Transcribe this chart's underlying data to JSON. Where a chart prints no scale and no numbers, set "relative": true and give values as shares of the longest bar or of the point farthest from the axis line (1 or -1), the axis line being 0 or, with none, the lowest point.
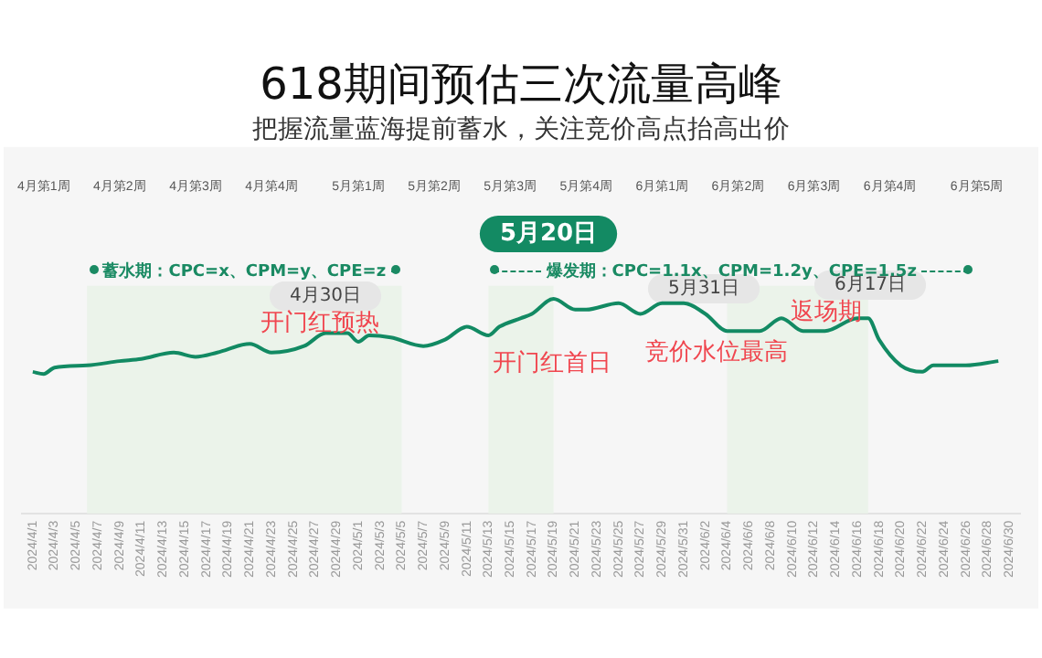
{
  "chart_data": {
    "type": "line",
    "title": "618期间预估三次流量高峰",
    "subtitle": "把握流量蓝海提前蓄水，关注竞价高点抬高出价",
    "relative": true,
    "grid": false,
    "legend": false,
    "marker": "none",
    "line_style": "solid",
    "xlim": [
      "2024-03-31",
      "2024-07-01"
    ],
    "xticks": [
      {
        "value": "2024-04-01",
        "label": "2024/4/1"
      },
      {
        "value": "2024-04-03",
        "label": "2024/4/3"
      },
      {
        "value": "2024-04-05",
        "label": "2024/4/5"
      },
      {
        "value": "2024-04-07",
        "label": "2024/4/7"
      },
      {
        "value": "2024-04-09",
        "label": "2024/4/9"
      },
      {
        "value": "2024-04-11",
        "label": "2024/4/11"
      },
      {
        "value": "2024-04-13",
        "label": "2024/4/13"
      },
      {
        "value": "2024-04-15",
        "label": "2024/4/15"
      },
      {
        "value": "2024-04-17",
        "label": "2024/4/17"
      },
      {
        "value": "2024-04-19",
        "label": "2024/4/19"
      },
      {
        "value": "2024-04-21",
        "label": "2024/4/21"
      },
      {
        "value": "2024-04-23",
        "label": "2024/4/23"
      },
      {
        "value": "2024-04-25",
        "label": "2024/4/25"
      },
      {
        "value": "2024-04-27",
        "label": "2024/4/27"
      },
      {
        "value": "2024-04-29",
        "label": "2024/4/29"
      },
      {
        "value": "2024-05-01",
        "label": "2024/5/1"
      },
      {
        "value": "2024-05-03",
        "label": "2024/5/3"
      },
      {
        "value": "2024-05-05",
        "label": "2024/5/5"
      },
      {
        "value": "2024-05-07",
        "label": "2024/5/7"
      },
      {
        "value": "2024-05-09",
        "label": "2024/5/9"
      },
      {
        "value": "2024-05-11",
        "label": "2024/5/11"
      },
      {
        "value": "2024-05-13",
        "label": "2024/5/13"
      },
      {
        "value": "2024-05-15",
        "label": "2024/5/15"
      },
      {
        "value": "2024-05-17",
        "label": "2024/5/17"
      },
      {
        "value": "2024-05-19",
        "label": "2024/5/19"
      },
      {
        "value": "2024-05-21",
        "label": "2024/5/21"
      },
      {
        "value": "2024-05-23",
        "label": "2024/5/23"
      },
      {
        "value": "2024-05-25",
        "label": "2024/5/25"
      },
      {
        "value": "2024-05-27",
        "label": "2024/5/27"
      },
      {
        "value": "2024-05-29",
        "label": "2024/5/29"
      },
      {
        "value": "2024-05-31",
        "label": "2024/5/31"
      },
      {
        "value": "2024-06-02",
        "label": "2024/6/2"
      },
      {
        "value": "2024-06-04",
        "label": "2024/6/4"
      },
      {
        "value": "2024-06-06",
        "label": "2024/6/6"
      },
      {
        "value": "2024-06-08",
        "label": "2024/6/8"
      },
      {
        "value": "2024-06-10",
        "label": "2024/6/10"
      },
      {
        "value": "2024-06-12",
        "label": "2024/6/12"
      },
      {
        "value": "2024-06-14",
        "label": "2024/6/14"
      },
      {
        "value": "2024-06-16",
        "label": "2024/6/16"
      },
      {
        "value": "2024-06-18",
        "label": "2024/6/18"
      },
      {
        "value": "2024-06-20",
        "label": "2024/6/20"
      },
      {
        "value": "2024-06-22",
        "label": "2024/6/22"
      },
      {
        "value": "2024-06-24",
        "label": "2024/6/24"
      },
      {
        "value": "2024-06-26",
        "label": "2024/6/26"
      },
      {
        "value": "2024-06-28",
        "label": "2024/6/28"
      },
      {
        "value": "2024-06-30",
        "label": "2024/6/30"
      }
    ],
    "x2lim": [
      "2024-03-31",
      "2024-07-01"
    ],
    "x2ticks": [
      {
        "value": "2024-04-02",
        "label": "4月第1周"
      },
      {
        "value": "2024-04-09",
        "label": "4月第2周"
      },
      {
        "value": "2024-04-16",
        "label": "4月第3周"
      },
      {
        "value": "2024-04-23",
        "label": "4月第4周"
      },
      {
        "value": "2024-05-01",
        "label": "5月第1周"
      },
      {
        "value": "2024-05-08",
        "label": "5月第2周"
      },
      {
        "value": "2024-05-15",
        "label": "5月第3周"
      },
      {
        "value": "2024-05-22",
        "label": "5月第4周"
      },
      {
        "value": "2024-05-29",
        "label": "6月第1周"
      },
      {
        "value": "2024-06-05",
        "label": "6月第2周"
      },
      {
        "value": "2024-06-12",
        "label": "6月第3周"
      },
      {
        "value": "2024-06-19",
        "label": "6月第4周"
      },
      {
        "value": "2024-06-27",
        "label": "6月第5周"
      }
    ],
    "x": [
      "2024-04-01",
      "2024-04-02",
      "2024-04-03",
      "2024-04-06",
      "2024-04-09",
      "2024-04-11",
      "2024-04-14",
      "2024-04-16",
      "2024-04-18",
      "2024-04-21",
      "2024-04-23",
      "2024-04-26",
      "2024-04-28",
      "2024-04-30",
      "2024-05-01",
      "2024-05-02",
      "2024-05-04",
      "2024-05-07",
      "2024-05-09",
      "2024-05-11",
      "2024-05-13",
      "2024-05-14",
      "2024-05-16",
      "2024-05-17",
      "2024-05-19",
      "2024-05-21",
      "2024-05-22",
      "2024-05-25",
      "2024-05-27",
      "2024-05-29",
      "2024-05-31",
      "2024-06-02",
      "2024-06-04",
      "2024-06-07",
      "2024-06-09",
      "2024-06-11",
      "2024-06-13",
      "2024-06-16",
      "2024-06-17",
      "2024-06-18",
      "2024-06-20",
      "2024-06-22",
      "2024-06-23",
      "2024-06-26",
      "2024-06-29"
    ],
    "series": [
      {
        "color": "#128a63",
        "values": [
          0.66,
          0.65,
          0.68,
          0.69,
          0.71,
          0.72,
          0.75,
          0.73,
          0.75,
          0.79,
          0.75,
          0.78,
          0.84,
          0.84,
          0.8,
          0.83,
          0.82,
          0.78,
          0.81,
          0.87,
          0.83,
          0.87,
          0.91,
          0.93,
          1,
          0.95,
          0.95,
          0.98,
          0.93,
          0.98,
          0.98,
          0.93,
          0.85,
          0.85,
          0.91,
          0.85,
          0.85,
          0.91,
          0.91,
          0.81,
          0.69,
          0.66,
          0.69,
          0.69,
          0.71
        ]
      }
    ],
    "bands": [
      {
        "axis": "x",
        "from": "2024-04-06",
        "to": "2024-05-05",
        "color": "#ebf3ea"
      },
      {
        "axis": "x",
        "from": "2024-05-13",
        "to": "2024-05-19",
        "color": "#ebf3ea"
      },
      {
        "axis": "x",
        "from": "2024-06-04",
        "to": "2024-06-17",
        "color": "#ebf3ea"
      }
    ],
    "annotations": [
      "蓄水期：CPC=x、CPM=y、CPE=z",
      "爆发期：CPC=1.1x、CPM=1.2y、CPE=1.5z",
      "5月20日",
      "4月30日",
      "5月31日",
      "6月17日",
      "开门红预热",
      "开门红首日",
      "竞价水位最高",
      "返场期"
    ]
  }
}
